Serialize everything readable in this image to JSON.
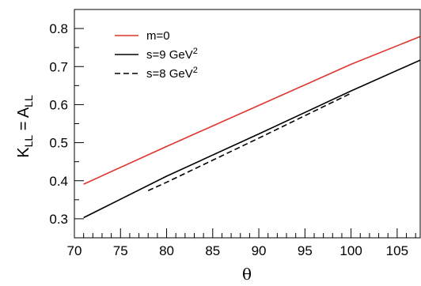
{
  "chart_data": {
    "type": "line",
    "xlabel": "θ",
    "ylabel": {
      "base": "K",
      "base_sub": "LL",
      "eq": " = ",
      "rhs": "A",
      "rhs_sub": "LL"
    },
    "xlim": [
      70,
      107.5
    ],
    "ylim": [
      0.25,
      0.85
    ],
    "xticks": [
      70,
      75,
      80,
      85,
      90,
      95,
      100,
      105
    ],
    "yticks": [
      0.3,
      0.4,
      0.5,
      0.6,
      0.7,
      0.8
    ],
    "xticks_minor_step": 1,
    "yticks_minor_step": 0.05,
    "grid": false,
    "legend_position": "top-left",
    "series": [
      {
        "name": "m=0",
        "color": "#e0342e",
        "dash": "solid",
        "x": [
          71,
          80,
          90,
          100,
          107.5
        ],
        "y": [
          0.391,
          0.49,
          0.598,
          0.706,
          0.779
        ]
      },
      {
        "name": "s=9 GeV",
        "sup": "2",
        "color": "#000000",
        "dash": "solid",
        "x": [
          71,
          80,
          90,
          100,
          107.5
        ],
        "y": [
          0.303,
          0.412,
          0.523,
          0.636,
          0.717
        ]
      },
      {
        "name": "s=8 GeV",
        "sup": "2",
        "color": "#000000",
        "dash": "dashed",
        "x": [
          78,
          80,
          90,
          100
        ],
        "y": [
          0.374,
          0.396,
          0.512,
          0.63
        ]
      }
    ]
  }
}
